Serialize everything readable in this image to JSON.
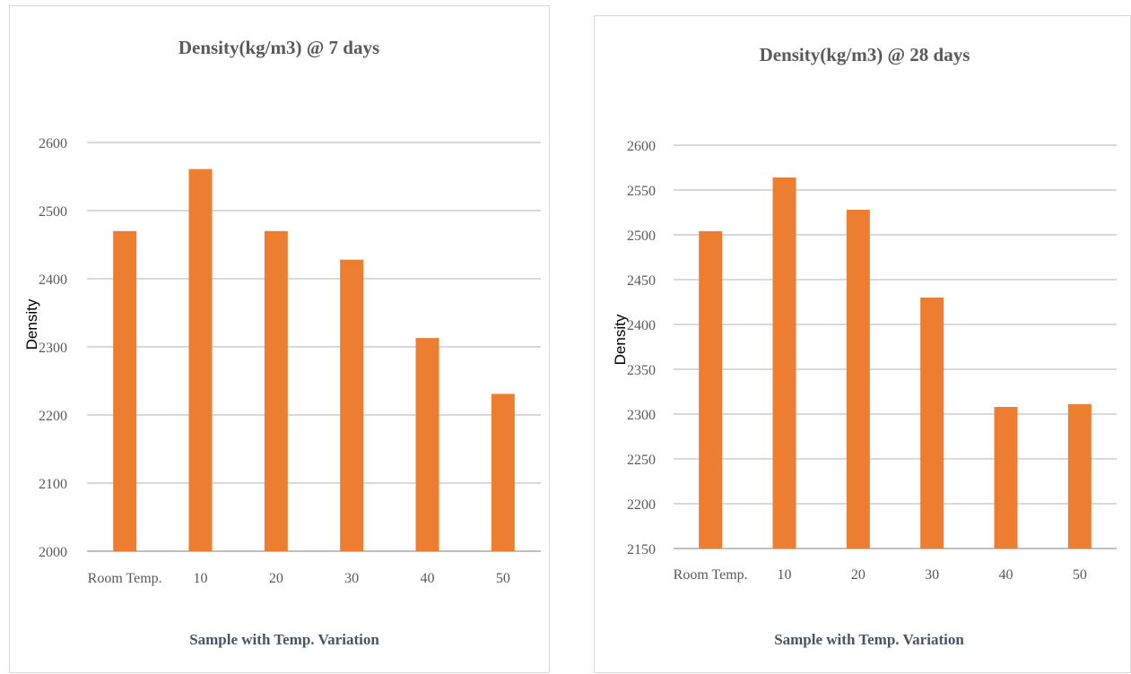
{
  "chart_data": [
    {
      "type": "bar",
      "title": "Density(kg/m3) @ 7 days",
      "xlabel": "Sample with Temp. Variation",
      "ylabel": "Density",
      "categories": [
        "Room Temp.",
        "10",
        "20",
        "30",
        "40",
        "50"
      ],
      "values": [
        2470,
        2561,
        2470,
        2428,
        2313,
        2231
      ],
      "ylim": [
        2000,
        2600
      ],
      "yticks": [
        "2000",
        "2100",
        "2200",
        "2300",
        "2400",
        "2500",
        "2600"
      ],
      "grid": true,
      "legend": "none",
      "bar_color": "#ed7d31"
    },
    {
      "type": "bar",
      "title": "Density(kg/m3) @ 28 days",
      "xlabel": "Sample with Temp. Variation",
      "ylabel": "Density",
      "categories": [
        "Room Temp.",
        "10",
        "20",
        "30",
        "40",
        "50"
      ],
      "values": [
        2504,
        2564,
        2528,
        2430,
        2308,
        2311
      ],
      "ylim": [
        2150,
        2600
      ],
      "yticks": [
        "2150",
        "2200",
        "2250",
        "2300",
        "2350",
        "2400",
        "2450",
        "2500",
        "2550",
        "2600"
      ],
      "grid": true,
      "legend": "none",
      "bar_color": "#ed7d31"
    }
  ]
}
